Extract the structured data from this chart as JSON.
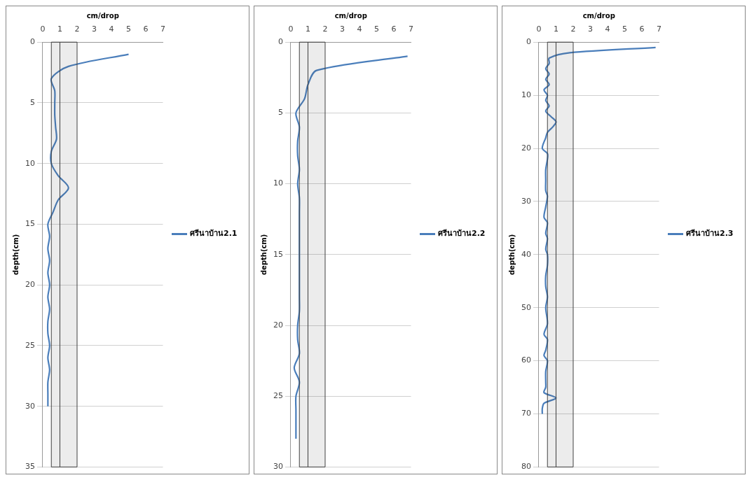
{
  "chart_data": [
    {
      "type": "line",
      "xlabel": "cm/drop",
      "ylabel": "depth(cm)",
      "xlim": [
        0,
        7
      ],
      "xticks": [
        0,
        1,
        2,
        3,
        4,
        5,
        6,
        7
      ],
      "ylim": [
        35,
        0
      ],
      "yticks": [
        0,
        5,
        10,
        15,
        20,
        25,
        30,
        35
      ],
      "grid": "y",
      "legend": "right",
      "marker": "none",
      "line_style": "solid",
      "bands": [
        {
          "axis": "x",
          "from": 0.5,
          "to": 1,
          "color": "#404040"
        },
        {
          "axis": "x",
          "from": 1,
          "to": 2,
          "color": "#404040"
        }
      ],
      "series": [
        {
          "name": "ศรีนาบ้าน2.1",
          "color": "#4a7ebb",
          "x": [
            5.0,
            1.5,
            0.5,
            0.7,
            0.7,
            0.7,
            0.75,
            0.8,
            0.5,
            0.5,
            0.9,
            1.5,
            0.9,
            0.6,
            0.3,
            0.4,
            0.3,
            0.4,
            0.3,
            0.4,
            0.3,
            0.4,
            0.3,
            0.3,
            0.4,
            0.3,
            0.4,
            0.3,
            0.3,
            0.3
          ],
          "values": [
            1,
            2,
            3,
            4,
            5,
            6,
            7,
            8,
            9,
            10,
            11,
            12,
            13,
            14,
            15,
            16,
            17,
            18,
            19,
            20,
            21,
            22,
            23,
            24,
            25,
            26,
            27,
            28,
            29,
            30
          ]
        }
      ]
    },
    {
      "type": "line",
      "xlabel": "cm/drop",
      "ylabel": "depth(cm)",
      "xlim": [
        0,
        7
      ],
      "xticks": [
        0,
        1,
        2,
        3,
        4,
        5,
        6,
        7
      ],
      "ylim": [
        30,
        0
      ],
      "yticks": [
        0,
        5,
        10,
        15,
        20,
        25,
        30
      ],
      "grid": "y",
      "legend": "right",
      "marker": "none",
      "line_style": "solid",
      "bands": [
        {
          "axis": "x",
          "from": 0.5,
          "to": 1,
          "color": "#404040"
        },
        {
          "axis": "x",
          "from": 1,
          "to": 2,
          "color": "#404040"
        }
      ],
      "series": [
        {
          "name": "ศรีนาบ้าน2.2",
          "color": "#4a7ebb",
          "x": [
            6.8,
            1.5,
            1.0,
            0.8,
            0.3,
            0.5,
            0.4,
            0.4,
            0.5,
            0.4,
            0.5,
            0.5,
            0.5,
            0.5,
            0.5,
            0.5,
            0.5,
            0.5,
            0.5,
            0.4,
            0.4,
            0.5,
            0.2,
            0.5,
            0.3,
            0.3,
            0.3,
            0.3
          ],
          "values": [
            1,
            2,
            3,
            4,
            5,
            6,
            7,
            8,
            9,
            10,
            11,
            12,
            13,
            14,
            15,
            16,
            17,
            18,
            19,
            20,
            21,
            22,
            23,
            24,
            25,
            26,
            27,
            28
          ]
        }
      ]
    },
    {
      "type": "line",
      "xlabel": "cm/drop",
      "ylabel": "depth(cm)",
      "xlim": [
        0,
        7
      ],
      "xticks": [
        0,
        1,
        2,
        3,
        4,
        5,
        6,
        7
      ],
      "ylim": [
        80,
        0
      ],
      "yticks": [
        0,
        10,
        20,
        30,
        40,
        50,
        60,
        70,
        80
      ],
      "grid": "y",
      "legend": "right",
      "marker": "none",
      "line_style": "solid",
      "bands": [
        {
          "axis": "x",
          "from": 0.5,
          "to": 1,
          "color": "#404040"
        },
        {
          "axis": "x",
          "from": 1,
          "to": 2,
          "color": "#404040"
        }
      ],
      "series": [
        {
          "name": "ศรีนาบ้าน2.3",
          "color": "#4a7ebb",
          "x": [
            6.8,
            1.8,
            0.6,
            0.6,
            0.4,
            0.6,
            0.4,
            0.6,
            0.3,
            0.5,
            0.4,
            0.6,
            0.4,
            0.7,
            1.0,
            0.8,
            0.5,
            0.4,
            0.2,
            0.5,
            0.5,
            0.4,
            0.4,
            0.4,
            0.5,
            0.4,
            0.3,
            0.5,
            0.4,
            0.5,
            0.4,
            0.5,
            0.5,
            0.4,
            0.4,
            0.5,
            0.4,
            0.5,
            0.3,
            0.5,
            0.4,
            0.3,
            0.5,
            0.4,
            0.4,
            0.4,
            0.3,
            1.0,
            0.3,
            0.2,
            0.2
          ],
          "values": [
            1,
            2,
            3,
            4,
            5,
            6,
            7,
            8,
            9,
            10,
            11,
            12,
            13,
            14,
            15,
            16,
            17,
            18,
            20,
            21,
            22,
            24,
            26,
            28,
            29,
            31,
            33,
            34,
            36,
            37,
            39,
            40,
            42,
            44,
            46,
            48,
            50,
            53,
            55,
            56,
            58,
            59,
            60,
            62,
            64,
            65,
            66,
            67,
            68,
            69,
            70
          ]
        }
      ]
    }
  ]
}
